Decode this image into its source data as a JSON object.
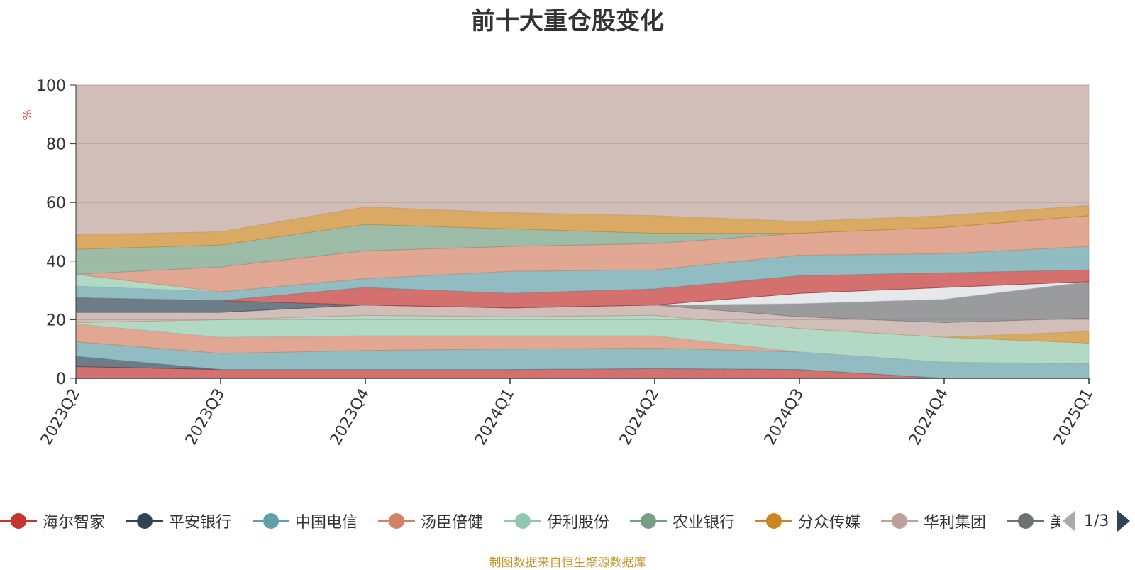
{
  "title": "前十大重仓股变化",
  "source_note": "制图数据来自恒生聚源数据库",
  "legend_pager": {
    "page_text": "1/3"
  },
  "legend": [
    {
      "name": "海尔智家",
      "color": "#c23531"
    },
    {
      "name": "平安银行",
      "color": "#2f4554"
    },
    {
      "name": "中国电信",
      "color": "#61a0a8"
    },
    {
      "name": "汤臣倍健",
      "color": "#d48265"
    },
    {
      "name": "伊利股份",
      "color": "#91c7ae"
    },
    {
      "name": "农业银行",
      "color": "#749f83"
    },
    {
      "name": "分众传媒",
      "color": "#ca8622"
    },
    {
      "name": "华利集团",
      "color": "#bda29a"
    },
    {
      "name": "美",
      "color": "#6e7074"
    }
  ],
  "chart_data": {
    "type": "area",
    "title": "前十大重仓股变化",
    "ylabel": "%",
    "ylim": [
      0,
      100
    ],
    "yticks": [
      0,
      20,
      40,
      60,
      80,
      100
    ],
    "categories": [
      "2023Q2",
      "2023Q3",
      "2023Q4",
      "2024Q1",
      "2024Q2",
      "2024Q3",
      "2024Q4",
      "2025Q1"
    ],
    "grid": true,
    "layers": [
      {
        "color": "#c23531",
        "bottom": [
          0,
          0,
          0,
          0,
          0,
          0,
          0,
          0
        ],
        "top": [
          4,
          3,
          3,
          3,
          3.3,
          3,
          0,
          0
        ]
      },
      {
        "color": "#2f4554",
        "bottom": [
          4,
          3,
          3,
          3,
          3.3,
          3,
          0,
          0
        ],
        "top": [
          7.5,
          3,
          3,
          3,
          3.3,
          3,
          0,
          0
        ]
      },
      {
        "color": "#61a0a8",
        "bottom": [
          7.5,
          3,
          3,
          3,
          3.3,
          3,
          0,
          0
        ],
        "top": [
          12.5,
          8.5,
          9.5,
          10,
          10.3,
          9,
          5.5,
          5
        ]
      },
      {
        "color": "#d48265",
        "bottom": [
          12.5,
          8.5,
          9.5,
          10,
          10.3,
          9,
          5.5,
          5
        ],
        "top": [
          18.5,
          14,
          14.5,
          14.5,
          14.5,
          9,
          5.5,
          5
        ]
      },
      {
        "color": "#91c7ae",
        "bottom": [
          18.5,
          14,
          14.5,
          14.5,
          14.5,
          9,
          5.5,
          5
        ],
        "top": [
          19,
          20,
          21.5,
          21,
          21.5,
          17,
          14,
          12
        ]
      },
      {
        "color": "#ca8622",
        "bottom": [
          19,
          20,
          21.5,
          21,
          21.5,
          17,
          14,
          12
        ],
        "top": [
          19,
          20,
          21.5,
          21,
          21.5,
          17,
          14,
          16
        ]
      },
      {
        "color": "#bda29a",
        "bottom": [
          19,
          20,
          21.5,
          21,
          21.5,
          17,
          14,
          16
        ],
        "top": [
          22.5,
          22.5,
          25,
          24,
          25,
          21,
          19,
          20.5
        ]
      },
      {
        "color": "#6e7074",
        "bottom": [
          22.5,
          22.5,
          25,
          24,
          25,
          21,
          19,
          20.5
        ],
        "top": [
          22.5,
          22.5,
          25,
          24,
          25,
          25.5,
          27,
          33
        ]
      },
      {
        "color": "#dcdfe4",
        "bottom": [
          22.5,
          22.5,
          25,
          24,
          25,
          25.5,
          27,
          33
        ],
        "top": [
          22.5,
          22.5,
          25,
          24,
          25,
          29,
          31,
          33
        ]
      },
      {
        "color": "#2f4554",
        "bottom": [
          22.5,
          22.5,
          25,
          24,
          25,
          29,
          31,
          33
        ],
        "top": [
          27.5,
          26.5,
          25,
          24,
          25,
          29,
          31,
          33
        ]
      },
      {
        "color": "#c23531",
        "bottom": [
          27.5,
          26.5,
          25,
          24,
          25,
          29,
          31,
          33
        ],
        "top": [
          27.5,
          26.5,
          31,
          29,
          30.5,
          35,
          36,
          37
        ]
      },
      {
        "color": "#61a0a8",
        "bottom": [
          27.5,
          26.5,
          31,
          29,
          30.5,
          35,
          36,
          37
        ],
        "top": [
          31.5,
          29.5,
          34,
          36.5,
          37,
          42,
          42.5,
          45
        ]
      },
      {
        "color": "#91c7ae",
        "bottom": [
          31.5,
          29.5,
          34,
          36.5,
          37,
          42,
          42.5,
          45
        ],
        "top": [
          35.5,
          29.5,
          34,
          36.5,
          37,
          42,
          42.5,
          45
        ]
      },
      {
        "color": "#d48265",
        "bottom": [
          35.5,
          29.5,
          34,
          36.5,
          37,
          42,
          42.5,
          45
        ],
        "top": [
          35.5,
          38,
          43.5,
          45,
          46,
          49.5,
          51.5,
          55.5
        ]
      },
      {
        "color": "#749f83",
        "bottom": [
          35.5,
          38,
          43.5,
          45,
          46,
          49.5,
          51.5,
          55.5
        ],
        "top": [
          44,
          45.5,
          52.5,
          51,
          49.5,
          49.5,
          51.5,
          55.5
        ]
      },
      {
        "color": "#ca8622",
        "bottom": [
          44,
          45.5,
          52.5,
          51,
          49.5,
          49.5,
          51.5,
          55.5
        ],
        "top": [
          49,
          50,
          58.5,
          56.5,
          55.5,
          53.5,
          55.5,
          59
        ]
      },
      {
        "color": "#bda29a",
        "bottom": [
          49,
          50,
          58.5,
          56.5,
          55.5,
          53.5,
          55.5,
          59
        ],
        "top": [
          100,
          100,
          100,
          100,
          100,
          100,
          100,
          100
        ]
      }
    ]
  }
}
